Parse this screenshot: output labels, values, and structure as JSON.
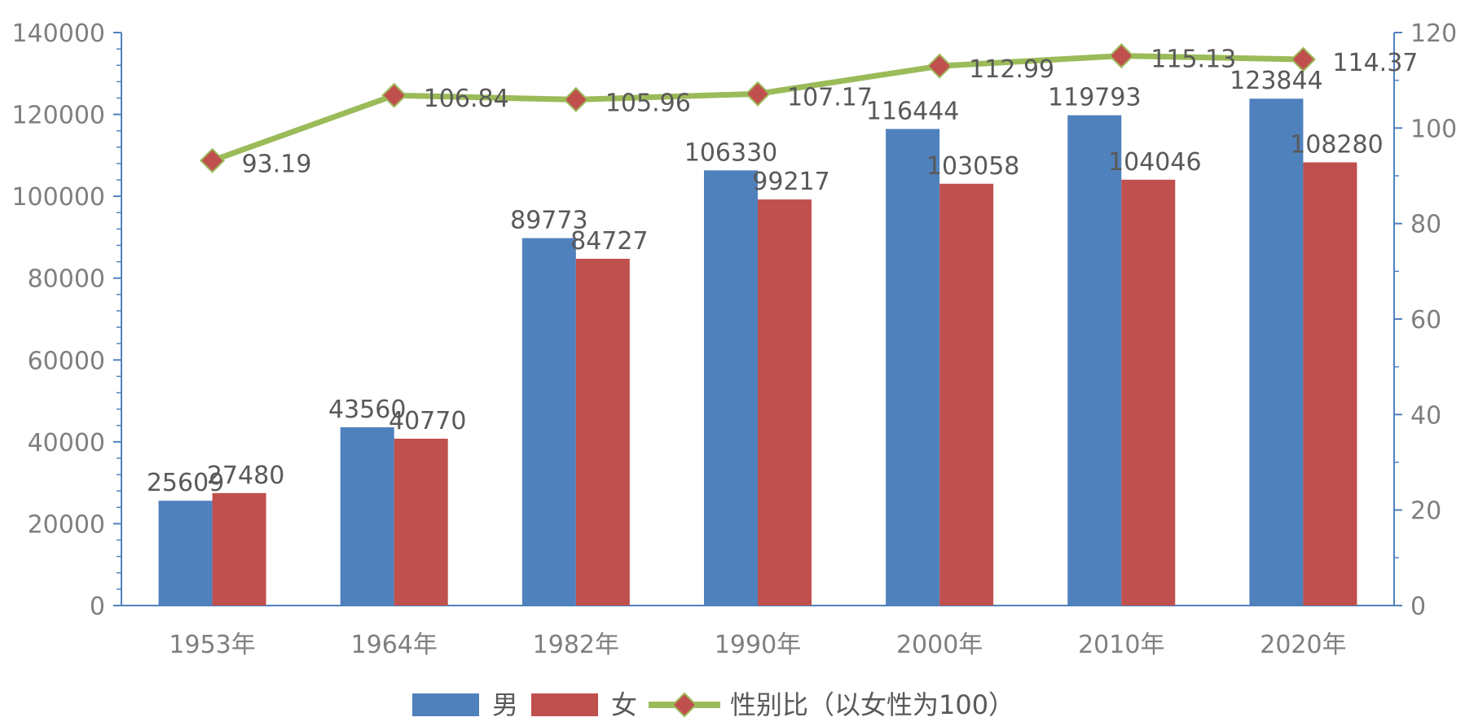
{
  "chart_data": {
    "type": "bar",
    "categories": [
      "1953年",
      "1964年",
      "1982年",
      "1990年",
      "2000年",
      "2010年",
      "2020年"
    ],
    "series": [
      {
        "name": "男",
        "type": "bar",
        "axis": "left",
        "values": [
          25609,
          43560,
          89773,
          106330,
          116444,
          119793,
          123844
        ]
      },
      {
        "name": "女",
        "type": "bar",
        "axis": "left",
        "values": [
          27480,
          40770,
          84727,
          99217,
          103058,
          104046,
          108280
        ]
      },
      {
        "name": "性别比（以女性为100）",
        "type": "line",
        "axis": "right",
        "values": [
          93.19,
          106.84,
          105.96,
          107.17,
          112.99,
          115.13,
          114.37
        ]
      }
    ],
    "value_labels": {
      "male": [
        "25609",
        "43560",
        "89773",
        "106330",
        "116444",
        "119793",
        "123844"
      ],
      "female": [
        "27480",
        "40770",
        "84727",
        "99217",
        "103058",
        "104046",
        "108280"
      ],
      "ratio": [
        "93.19",
        "106.84",
        "105.96",
        "107.17",
        "112.99",
        "115.13",
        "114.37"
      ]
    },
    "y_left": {
      "min": 0,
      "max": 140000,
      "ticks": [
        "0",
        "20000",
        "40000",
        "60000",
        "80000",
        "100000",
        "120000",
        "140000"
      ]
    },
    "y_right": {
      "min": 0,
      "max": 120,
      "ticks": [
        "0",
        "20",
        "40",
        "60",
        "80",
        "100",
        "120"
      ]
    },
    "legend_position": "bottom",
    "grid": false,
    "colors": {
      "male": "#4f81bd",
      "female": "#c0504d",
      "ratio_line": "#9bbb59",
      "ratio_marker": "#c0504d",
      "axis": "#4f81bd"
    }
  }
}
